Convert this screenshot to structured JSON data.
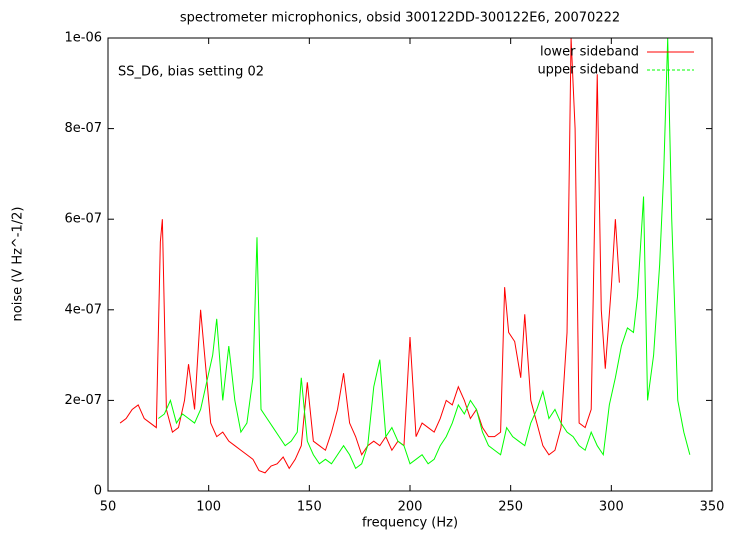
{
  "chart_data": {
    "type": "line",
    "title": "spectrometer microphonics, obsid 300122DD-300122E6, 20070222",
    "x_label": "frequency (Hz)",
    "y_label": "noise (V Hz^-1/2)",
    "annotation": "SS_D6, bias setting 02",
    "legend": "top-right",
    "xlim": [
      50,
      350
    ],
    "xticks": [
      50,
      100,
      150,
      200,
      250,
      300,
      350
    ],
    "ylim": [
      0,
      1e-06
    ],
    "yticks": [
      0,
      {
        "value": 2e-07,
        "label": "2e-07"
      },
      {
        "value": 4e-07,
        "label": "4e-07"
      },
      {
        "value": 6e-07,
        "label": "6e-07"
      },
      {
        "value": 8e-07,
        "label": "8e-07"
      },
      {
        "value": 1e-06,
        "label": "1e-06"
      }
    ],
    "series": [
      {
        "name": "lower sideband",
        "color": "#ff0000",
        "x": [
          56,
          59,
          62,
          65,
          68,
          71,
          74,
          76,
          77,
          79,
          82,
          85,
          88,
          90,
          93,
          96,
          98,
          101,
          104,
          107,
          110,
          113,
          116,
          119,
          122,
          125,
          128,
          131,
          134,
          137,
          140,
          143,
          146,
          149,
          152,
          155,
          158,
          161,
          164,
          167,
          170,
          173,
          176,
          179,
          182,
          185,
          188,
          191,
          194,
          197,
          200,
          203,
          206,
          209,
          212,
          215,
          218,
          221,
          224,
          227,
          230,
          233,
          236,
          239,
          242,
          245,
          247,
          249,
          252,
          255,
          257,
          260,
          263,
          266,
          269,
          272,
          275,
          278,
          280,
          282,
          284,
          287,
          290,
          293,
          295,
          297,
          300,
          302,
          304
        ],
        "values": [
          1.5e-07,
          1.6e-07,
          1.8e-07,
          1.9e-07,
          1.6e-07,
          1.5e-07,
          1.4e-07,
          5.5e-07,
          6e-07,
          1.8e-07,
          1.3e-07,
          1.4e-07,
          2e-07,
          2.8e-07,
          1.8e-07,
          4e-07,
          3e-07,
          1.5e-07,
          1.2e-07,
          1.3e-07,
          1.1e-07,
          1e-07,
          9e-08,
          8e-08,
          7e-08,
          4.5e-08,
          4e-08,
          5.5e-08,
          6e-08,
          7.5e-08,
          5e-08,
          7e-08,
          1e-07,
          2.4e-07,
          1.1e-07,
          1e-07,
          9e-08,
          1.3e-07,
          1.8e-07,
          2.6e-07,
          1.5e-07,
          1.2e-07,
          8e-08,
          1e-07,
          1.1e-07,
          1e-07,
          1.2e-07,
          9e-08,
          1.1e-07,
          1e-07,
          3.4e-07,
          1.2e-07,
          1.5e-07,
          1.4e-07,
          1.3e-07,
          1.6e-07,
          2e-07,
          1.9e-07,
          2.3e-07,
          2e-07,
          1.6e-07,
          1.8e-07,
          1.4e-07,
          1.2e-07,
          1.2e-07,
          1.3e-07,
          4.5e-07,
          3.5e-07,
          3.3e-07,
          2.5e-07,
          3.9e-07,
          2e-07,
          1.5e-07,
          1e-07,
          8e-08,
          9e-08,
          1.4e-07,
          3.5e-07,
          1e-06,
          8e-07,
          1.5e-07,
          1.4e-07,
          1.8e-07,
          9.2e-07,
          4e-07,
          2.7e-07,
          4.5e-07,
          6e-07,
          4.6e-07
        ]
      },
      {
        "name": "upper sideband",
        "color": "#00ff00",
        "x": [
          75,
          78,
          81,
          84,
          87,
          90,
          93,
          96,
          99,
          102,
          104,
          107,
          110,
          113,
          116,
          119,
          122,
          124,
          126,
          129,
          132,
          135,
          138,
          141,
          144,
          146,
          149,
          152,
          155,
          158,
          161,
          164,
          167,
          170,
          173,
          176,
          179,
          182,
          185,
          188,
          191,
          194,
          197,
          200,
          203,
          206,
          209,
          212,
          215,
          218,
          221,
          224,
          227,
          230,
          233,
          236,
          239,
          242,
          245,
          248,
          251,
          254,
          257,
          260,
          263,
          266,
          269,
          272,
          275,
          278,
          281,
          284,
          287,
          290,
          293,
          296,
          299,
          302,
          305,
          308,
          311,
          313,
          316,
          318,
          321,
          324,
          326,
          328,
          330,
          333,
          336,
          339
        ],
        "values": [
          1.6e-07,
          1.7e-07,
          2e-07,
          1.5e-07,
          1.7e-07,
          1.6e-07,
          1.5e-07,
          1.8e-07,
          2.4e-07,
          3e-07,
          3.8e-07,
          2e-07,
          3.2e-07,
          2e-07,
          1.3e-07,
          1.5e-07,
          2.5e-07,
          5.6e-07,
          1.8e-07,
          1.6e-07,
          1.4e-07,
          1.2e-07,
          1e-07,
          1.1e-07,
          1.3e-07,
          2.5e-07,
          1.1e-07,
          8e-08,
          6e-08,
          7e-08,
          6e-08,
          8e-08,
          1e-07,
          8e-08,
          5e-08,
          6e-08,
          1e-07,
          2.3e-07,
          2.9e-07,
          1.2e-07,
          1.4e-07,
          1.1e-07,
          1e-07,
          6e-08,
          7e-08,
          8e-08,
          6e-08,
          7e-08,
          1e-07,
          1.2e-07,
          1.5e-07,
          1.9e-07,
          1.7e-07,
          2e-07,
          1.8e-07,
          1.3e-07,
          1e-07,
          9e-08,
          8e-08,
          1.4e-07,
          1.2e-07,
          1.1e-07,
          1e-07,
          1.5e-07,
          1.8e-07,
          2.2e-07,
          1.6e-07,
          1.8e-07,
          1.5e-07,
          1.3e-07,
          1.2e-07,
          1e-07,
          9e-08,
          1.3e-07,
          1e-07,
          8e-08,
          1.9e-07,
          2.5e-07,
          3.2e-07,
          3.6e-07,
          3.5e-07,
          4.3e-07,
          6.5e-07,
          2e-07,
          3e-07,
          5e-07,
          7e-07,
          1e-06,
          6e-07,
          2e-07,
          1.3e-07,
          8e-08
        ]
      }
    ]
  }
}
